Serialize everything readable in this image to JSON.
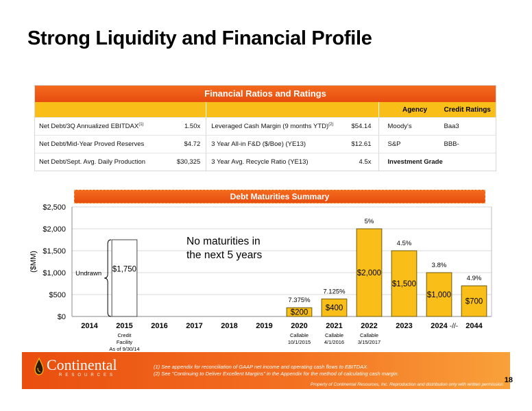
{
  "page": {
    "title": "Strong Liquidity and Financial Profile",
    "page_number": "18"
  },
  "ratios": {
    "header": "Financial Ratios and Ratings",
    "agency_header": "Agency",
    "ratings_header": "Credit Ratings",
    "rows": [
      {
        "label1": "Net Debt/3Q Annualized EBITDAX",
        "sup1": "(1)",
        "value1": "1.50x",
        "label2": "Leveraged Cash Margin (9 months YTD)",
        "sup2": "(2)",
        "value2": "$54.14",
        "agency": "Moody's",
        "rating": "Baa3"
      },
      {
        "label1": "Net Debt/Mid-Year Proved Reserves",
        "value1": "$4.72",
        "label2": "3 Year All-in F&D ($/Boe) (YE13)",
        "value2": "$12.61",
        "agency": "S&P",
        "rating": "BBB-"
      },
      {
        "label1": "Net Debt/Sept. Avg. Daily Production",
        "value1": "$30,325",
        "label2": "3 Year Avg. Recycle Ratio (YE13)",
        "value2": "4.5x",
        "agency": "Investment Grade",
        "rating": ""
      }
    ]
  },
  "debt": {
    "banner": "Debt Maturities Summary"
  },
  "chart_data": {
    "type": "bar",
    "title": "Debt Maturities Summary",
    "ylabel": "($MM)",
    "ylim": [
      0,
      2500
    ],
    "yticks": [
      0,
      500,
      1000,
      1500,
      2000,
      2500
    ],
    "ytick_labels": [
      "$0",
      "$500",
      "$1,000",
      "$1,500",
      "$2,000",
      "$2,500"
    ],
    "grid": true,
    "categories": [
      "2014",
      "2015",
      "2016",
      "2017",
      "2018",
      "2019",
      "2020",
      "2021",
      "2022",
      "2023",
      "2024",
      "2044"
    ],
    "values": [
      null,
      1750,
      null,
      null,
      null,
      null,
      200,
      400,
      2000,
      1500,
      1000,
      700
    ],
    "value_labels": [
      "",
      "$1,750",
      "",
      "",
      "",
      "",
      "$200",
      "$400",
      "$2,000",
      "$1,500",
      "$1,000",
      "$700"
    ],
    "rates": [
      "",
      "",
      "",
      "",
      "",
      "",
      "7.375%",
      "7.125%",
      "5%",
      "4.5%",
      "3.8%",
      "4.9%"
    ],
    "bar_styles": [
      "none",
      "outline",
      "none",
      "none",
      "none",
      "none",
      "filled",
      "filled",
      "filled",
      "filled",
      "filled",
      "filled"
    ],
    "sublabels": [
      {
        "index": 1,
        "lines": [
          "Credit",
          "Facility",
          "As of 9/30/14"
        ]
      },
      {
        "index": 6,
        "lines": [
          "Callable",
          "10/1/2015"
        ]
      },
      {
        "index": 7,
        "lines": [
          "Callable",
          "4/1/2016"
        ]
      },
      {
        "index": 8,
        "lines": [
          "Callable",
          "3/15/2017"
        ]
      }
    ],
    "annotations": {
      "no_maturities": [
        "No maturities in",
        "the next 5 years"
      ],
      "undrawn": "Undrawn",
      "axis_break": "-//-"
    },
    "colors": {
      "bar_fill": "#f9be18",
      "bar_stroke": "#6b5a10",
      "outline_stroke": "#444444",
      "grid": "#d9d9d9"
    }
  },
  "footer": {
    "logo_name": "Continental",
    "logo_sub": "RESOURCES",
    "footnote1": "(1)   See appendix for reconciliation of GAAP net income and operating cash flows to EBITDAX.",
    "footnote2": "(2)   See \"Continuing to Deliver Excellent Margins\" in the Appendix for the method of calculating cash margin.",
    "copyright": "Property of Continental Resources, Inc. Reproduction and distribution only with written permission",
    "logo_icon": "oil-drop-icon"
  }
}
